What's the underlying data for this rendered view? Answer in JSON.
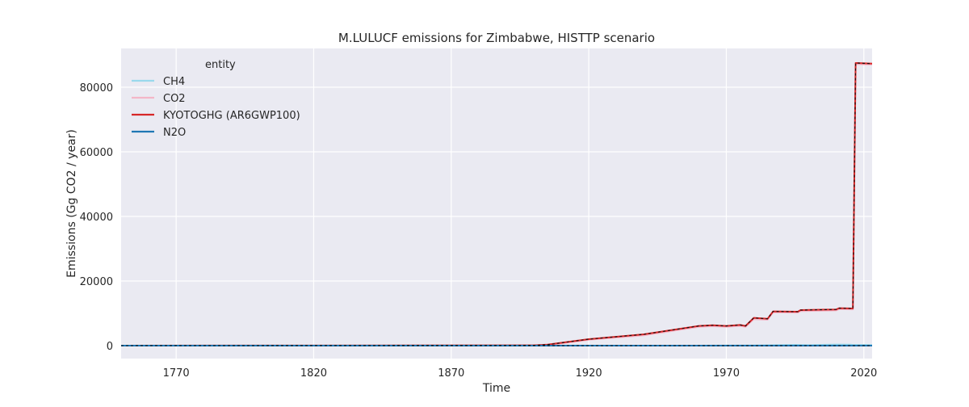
{
  "chart_data": {
    "type": "line",
    "title": "M.LULUCF emissions for Zimbabwe, HISTTP scenario",
    "xlabel": "Time",
    "ylabel": "Emissions (Gg CO2 / year)",
    "xlim": [
      1750,
      2023
    ],
    "ylim": [
      -4000,
      92000
    ],
    "x_ticks": [
      1770,
      1820,
      1870,
      1920,
      1970,
      2020
    ],
    "y_ticks": [
      0,
      20000,
      40000,
      60000,
      80000
    ],
    "grid": true,
    "legend": {
      "title": "entity",
      "placement": "top-left"
    },
    "series": [
      {
        "name": "CH4",
        "color": "#9ad9ec",
        "style": "solid",
        "points": [
          [
            1750,
            0
          ],
          [
            1960,
            0
          ],
          [
            1980,
            80
          ],
          [
            1995,
            250
          ],
          [
            2000,
            150
          ],
          [
            2010,
            350
          ],
          [
            2015,
            300
          ],
          [
            2016,
            250
          ],
          [
            2023,
            200
          ]
        ]
      },
      {
        "name": "CO2",
        "color": "#f3b6c8",
        "style": "solid",
        "points": [
          [
            1750,
            0
          ],
          [
            1900,
            0
          ],
          [
            1905,
            100
          ],
          [
            1920,
            1800
          ],
          [
            1940,
            3200
          ],
          [
            1960,
            5800
          ],
          [
            1965,
            6000
          ],
          [
            1970,
            5800
          ],
          [
            1975,
            6100
          ],
          [
            1977,
            5800
          ],
          [
            1980,
            8200
          ],
          [
            1985,
            8000
          ],
          [
            1987,
            10300
          ],
          [
            1996,
            10200
          ],
          [
            1997,
            10700
          ],
          [
            2010,
            10900
          ],
          [
            2011,
            11300
          ],
          [
            2016,
            11200
          ],
          [
            2017,
            87200
          ],
          [
            2023,
            87000
          ]
        ]
      },
      {
        "name": "KYOTOGHG (AR6GWP100)",
        "color": "#d62728",
        "style": "solid",
        "points": [
          [
            1750,
            0
          ],
          [
            1900,
            100
          ],
          [
            1905,
            300
          ],
          [
            1920,
            2000
          ],
          [
            1940,
            3500
          ],
          [
            1960,
            6100
          ],
          [
            1965,
            6300
          ],
          [
            1970,
            6100
          ],
          [
            1975,
            6400
          ],
          [
            1977,
            6100
          ],
          [
            1980,
            8600
          ],
          [
            1985,
            8300
          ],
          [
            1987,
            10600
          ],
          [
            1996,
            10500
          ],
          [
            1997,
            11000
          ],
          [
            2010,
            11200
          ],
          [
            2011,
            11600
          ],
          [
            2016,
            11500
          ],
          [
            2017,
            87500
          ],
          [
            2023,
            87300
          ]
        ]
      },
      {
        "name": "N2O",
        "color": "#1f77b4",
        "style": "solid",
        "points": [
          [
            1750,
            0
          ],
          [
            2023,
            0
          ]
        ]
      },
      {
        "name": "",
        "color": "#111111",
        "style": "dashed",
        "points": [
          [
            1750,
            0
          ],
          [
            1900,
            100
          ],
          [
            1905,
            300
          ],
          [
            1920,
            2000
          ],
          [
            1940,
            3500
          ],
          [
            1960,
            6100
          ],
          [
            1965,
            6300
          ],
          [
            1970,
            6100
          ],
          [
            1975,
            6400
          ],
          [
            1977,
            6100
          ],
          [
            1980,
            8600
          ],
          [
            1985,
            8300
          ],
          [
            1987,
            10600
          ],
          [
            1996,
            10500
          ],
          [
            1997,
            11000
          ],
          [
            2010,
            11200
          ],
          [
            2011,
            11600
          ],
          [
            2016,
            11500
          ],
          [
            2017,
            87500
          ],
          [
            2023,
            87300
          ]
        ]
      },
      {
        "name": "",
        "color": "#111111",
        "style": "dashed",
        "points": [
          [
            1750,
            0
          ],
          [
            2023,
            0
          ]
        ]
      }
    ]
  }
}
